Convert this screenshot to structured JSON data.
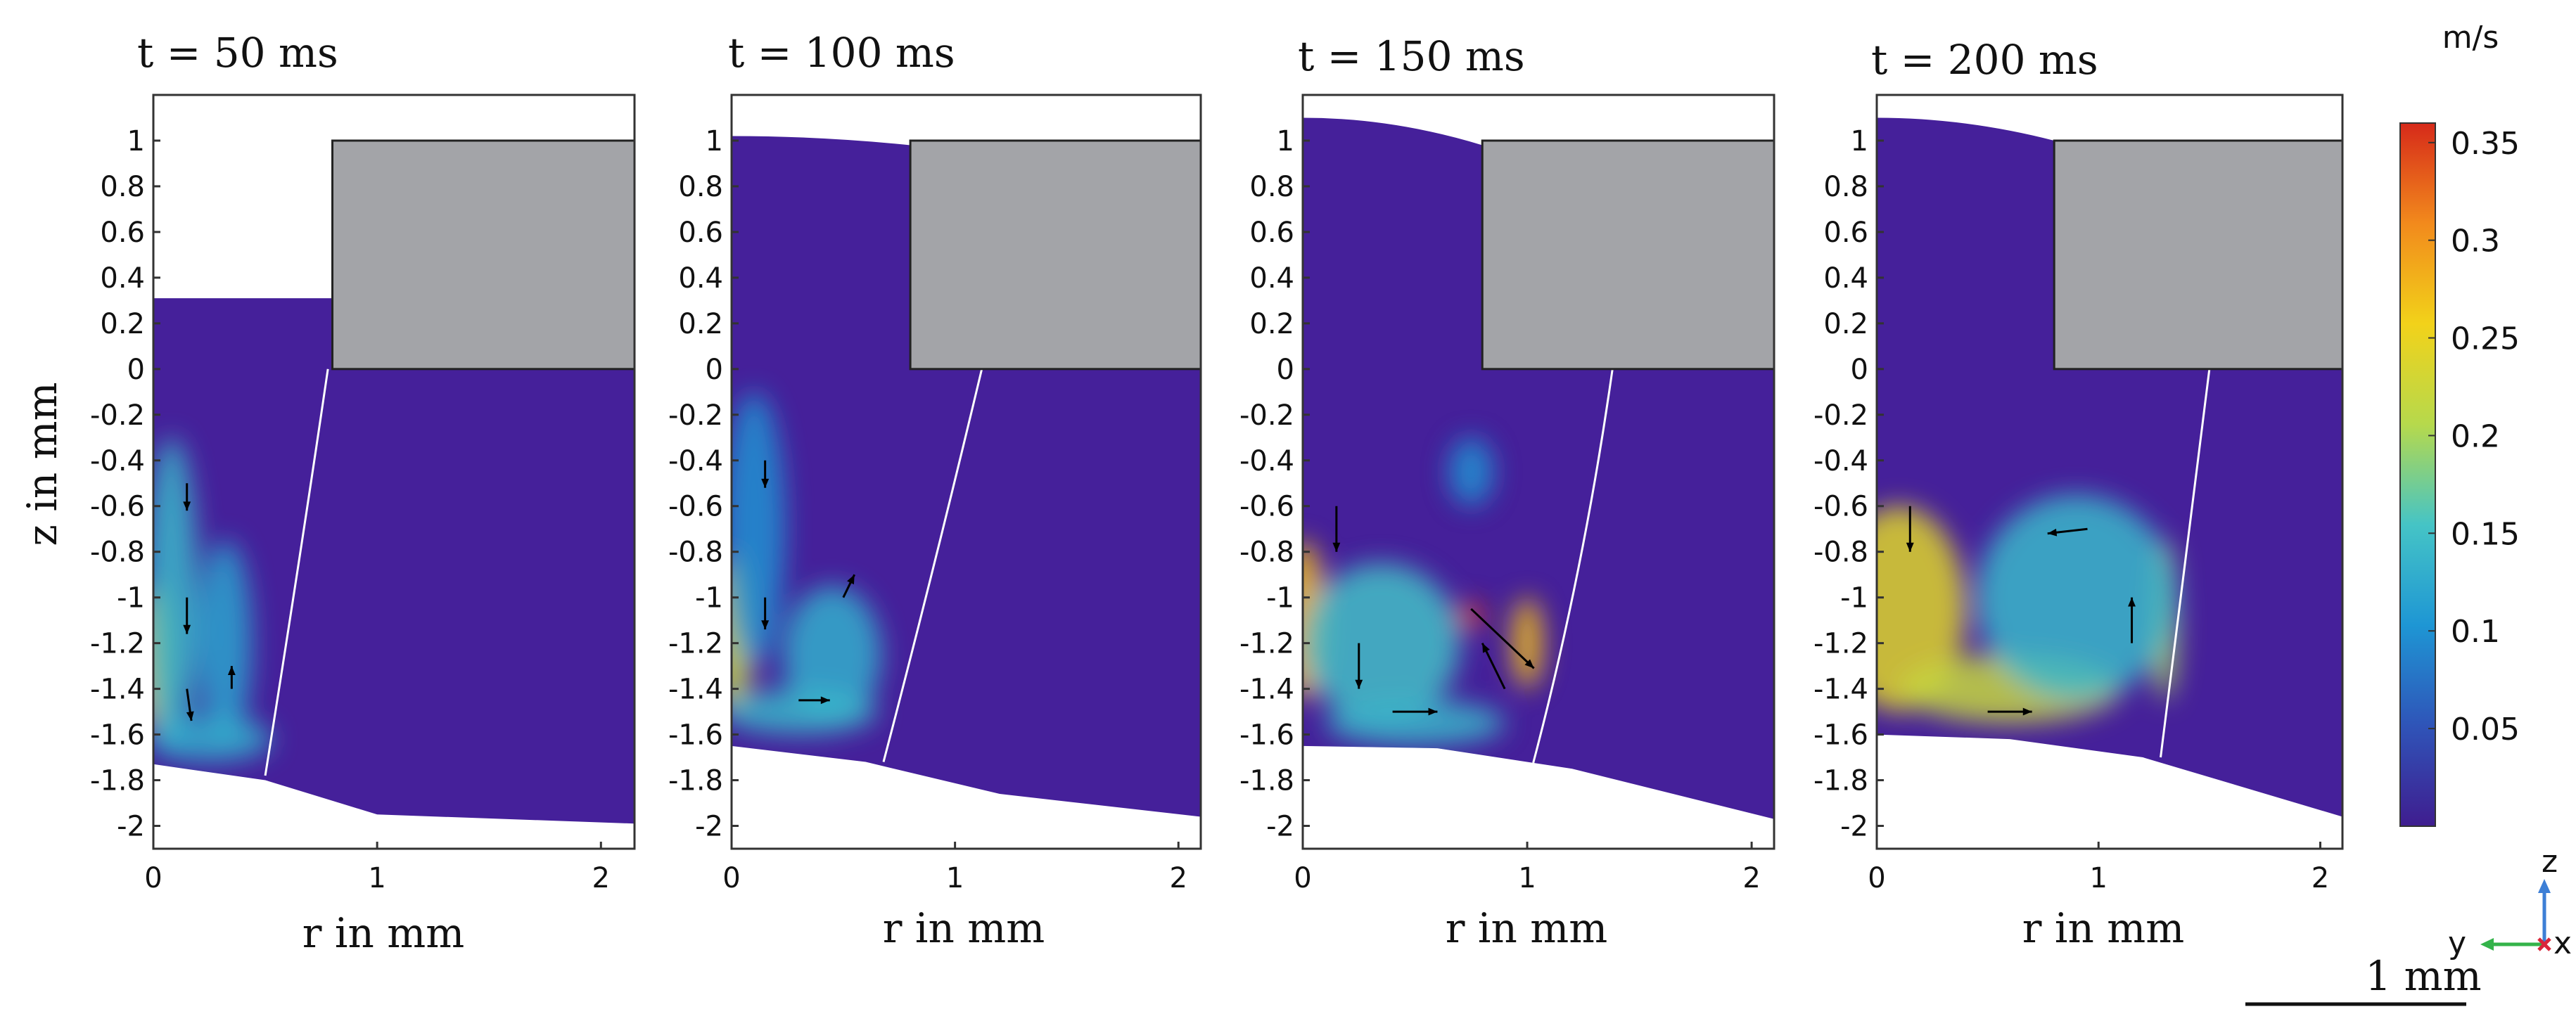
{
  "chart_data": {
    "type": "heatmap",
    "description_units": "velocity magnitude with velocity vectors (axisymmetric r–z cross section)",
    "panels": [
      {
        "title": "t = 50 ms",
        "xlabel": "r in mm",
        "ylabel": "z in mm",
        "xlim": [
          0,
          2.15
        ],
        "ylim": [
          -2.1,
          1.2
        ],
        "xticks": [
          "0",
          "1",
          "2"
        ],
        "yticks": [
          "1",
          "0.8",
          "0.6",
          "0.4",
          "0.2",
          "0",
          "-0.2",
          "-0.4",
          "-0.6",
          "-0.8",
          "-1",
          "-1.2",
          "-1.4",
          "-1.6",
          "-1.8",
          "-2"
        ],
        "fluid_top_z": 0.31,
        "bottom_surface": [
          [
            0,
            -1.73
          ],
          [
            0.5,
            -1.8
          ],
          [
            1.0,
            -1.95
          ],
          [
            2.15,
            -1.99
          ]
        ],
        "obstacle": {
          "r": [
            0.8,
            2.15
          ],
          "z": [
            0,
            1.0
          ]
        },
        "interface_line": [
          [
            0.5,
            -1.78
          ],
          [
            0.66,
            -0.8
          ],
          [
            0.78,
            0.0
          ]
        ],
        "hot_spots": [
          {
            "r": 0.0,
            "z": -1.25,
            "speed": 0.24,
            "rx": 0.09,
            "rz": 0.32
          },
          {
            "r": 0.08,
            "z": -1.0,
            "speed": 0.14,
            "rx": 0.12,
            "rz": 0.7
          },
          {
            "r": 0.32,
            "z": -1.2,
            "speed": 0.12,
            "rx": 0.12,
            "rz": 0.45
          },
          {
            "r": 0.25,
            "z": -1.62,
            "speed": 0.13,
            "rx": 0.28,
            "rz": 0.1
          }
        ],
        "vectors": [
          {
            "r": 0.15,
            "z": -0.5,
            "dr": 0.0,
            "dz": -0.12
          },
          {
            "r": 0.15,
            "z": -1.0,
            "dr": 0.0,
            "dz": -0.16
          },
          {
            "r": 0.15,
            "z": -1.4,
            "dr": 0.02,
            "dz": -0.14
          },
          {
            "r": 0.35,
            "z": -1.4,
            "dr": 0.0,
            "dz": 0.1
          }
        ]
      },
      {
        "title": "t = 100 ms",
        "xlabel": "r in mm",
        "ylabel": "",
        "xlim": [
          0,
          2.1
        ],
        "ylim": [
          -2.1,
          1.2
        ],
        "xticks": [
          "0",
          "1",
          "2"
        ],
        "yticks": [
          "1",
          "0.8",
          "0.6",
          "0.4",
          "0.2",
          "0",
          "-0.2",
          "-0.4",
          "-0.6",
          "-0.8",
          "-1",
          "-1.2",
          "-1.4",
          "-1.6",
          "-1.8",
          "-2"
        ],
        "fluid_top_z": 1.02,
        "fluid_top_profile": [
          [
            0,
            1.02
          ],
          [
            0.8,
            0.98
          ]
        ],
        "bottom_surface": [
          [
            0,
            -1.65
          ],
          [
            0.6,
            -1.72
          ],
          [
            1.2,
            -1.86
          ],
          [
            2.1,
            -1.96
          ]
        ],
        "obstacle": {
          "r": [
            0.8,
            2.1
          ],
          "z": [
            0,
            1.0
          ]
        },
        "interface_line": [
          [
            0.68,
            -1.72
          ],
          [
            0.9,
            -0.9
          ],
          [
            1.12,
            0.0
          ]
        ],
        "hot_spots": [
          {
            "r": 0.0,
            "z": -1.15,
            "speed": 0.22,
            "rx": 0.1,
            "rz": 0.35
          },
          {
            "r": 0.1,
            "z": -0.7,
            "speed": 0.1,
            "rx": 0.14,
            "rz": 0.6
          },
          {
            "r": 0.45,
            "z": -1.25,
            "speed": 0.13,
            "rx": 0.22,
            "rz": 0.3
          },
          {
            "r": 0.3,
            "z": -1.5,
            "speed": 0.14,
            "rx": 0.35,
            "rz": 0.1
          }
        ],
        "vectors": [
          {
            "r": 0.15,
            "z": -0.4,
            "dr": 0.0,
            "dz": -0.12
          },
          {
            "r": 0.15,
            "z": -1.0,
            "dr": 0.0,
            "dz": -0.14
          },
          {
            "r": 0.3,
            "z": -1.45,
            "dr": 0.14,
            "dz": 0.0
          },
          {
            "r": 0.5,
            "z": -1.0,
            "dr": 0.05,
            "dz": 0.1
          }
        ]
      },
      {
        "title": "t = 150 ms",
        "xlabel": "r in mm",
        "ylabel": "",
        "xlim": [
          0,
          2.1
        ],
        "ylim": [
          -2.1,
          1.2
        ],
        "xticks": [
          "0",
          "1",
          "2"
        ],
        "yticks": [
          "1",
          "0.8",
          "0.6",
          "0.4",
          "0.2",
          "0",
          "-0.2",
          "-0.4",
          "-0.6",
          "-0.8",
          "-1",
          "-1.2",
          "-1.4",
          "-1.6",
          "-1.8",
          "-2"
        ],
        "fluid_top_z": 1.1,
        "fluid_top_profile": [
          [
            0,
            1.1
          ],
          [
            0.8,
            0.98
          ]
        ],
        "bottom_surface": [
          [
            0,
            -1.65
          ],
          [
            0.6,
            -1.66
          ],
          [
            1.2,
            -1.75
          ],
          [
            2.1,
            -1.97
          ]
        ],
        "obstacle": {
          "r": [
            0.8,
            2.1
          ],
          "z": [
            0,
            1.0
          ]
        },
        "interface_line": [
          [
            1.02,
            -1.75
          ],
          [
            1.25,
            -0.9
          ],
          [
            1.38,
            0.0
          ]
        ],
        "hot_spots": [
          {
            "r": 0.0,
            "z": -1.1,
            "speed": 0.27,
            "rx": 0.1,
            "rz": 0.35
          },
          {
            "r": 0.35,
            "z": -1.2,
            "speed": 0.15,
            "rx": 0.35,
            "rz": 0.35
          },
          {
            "r": 0.75,
            "z": -1.08,
            "speed": 0.35,
            "rx": 0.06,
            "rz": 0.06
          },
          {
            "r": 1.0,
            "z": -1.2,
            "speed": 0.27,
            "rx": 0.07,
            "rz": 0.2
          },
          {
            "r": 0.5,
            "z": -1.55,
            "speed": 0.14,
            "rx": 0.4,
            "rz": 0.1
          },
          {
            "r": 0.75,
            "z": -0.45,
            "speed": 0.1,
            "rx": 0.1,
            "rz": 0.15
          }
        ],
        "vectors": [
          {
            "r": 0.15,
            "z": -0.6,
            "dr": 0.0,
            "dz": -0.2
          },
          {
            "r": 0.25,
            "z": -1.2,
            "dr": 0.0,
            "dz": -0.2
          },
          {
            "r": 0.4,
            "z": -1.5,
            "dr": 0.2,
            "dz": 0.0
          },
          {
            "r": 0.75,
            "z": -1.05,
            "dr": 0.28,
            "dz": -0.26
          },
          {
            "r": 0.9,
            "z": -1.4,
            "dr": -0.1,
            "dz": 0.2
          }
        ]
      },
      {
        "title": "t = 200 ms",
        "xlabel": "r in mm",
        "ylabel": "",
        "xlim": [
          0,
          2.1
        ],
        "ylim": [
          -2.1,
          1.2
        ],
        "xticks": [
          "0",
          "1",
          "2"
        ],
        "yticks": [
          "1",
          "0.8",
          "0.6",
          "0.4",
          "0.2",
          "0",
          "-0.2",
          "-0.4",
          "-0.6",
          "-0.8",
          "-1",
          "-1.2",
          "-1.4",
          "-1.6",
          "-1.8",
          "-2"
        ],
        "fluid_top_z": 1.1,
        "fluid_top_profile": [
          [
            0,
            1.1
          ],
          [
            0.8,
            1.0
          ]
        ],
        "bottom_surface": [
          [
            0,
            -1.6
          ],
          [
            0.6,
            -1.62
          ],
          [
            1.2,
            -1.7
          ],
          [
            2.1,
            -1.96
          ]
        ],
        "obstacle": {
          "r": [
            0.8,
            2.1
          ],
          "z": [
            0,
            1.0
          ]
        },
        "interface_line": [
          [
            1.28,
            -1.7
          ],
          [
            1.38,
            -0.9
          ],
          [
            1.5,
            0.0
          ]
        ],
        "hot_spots": [
          {
            "r": 0.1,
            "z": -1.05,
            "speed": 0.24,
            "rx": 0.3,
            "rz": 0.45
          },
          {
            "r": 0.6,
            "z": -1.4,
            "speed": 0.22,
            "rx": 0.5,
            "rz": 0.15
          },
          {
            "r": 1.3,
            "z": -1.1,
            "speed": 0.2,
            "rx": 0.06,
            "rz": 0.35
          },
          {
            "r": 0.9,
            "z": -1.0,
            "speed": 0.14,
            "rx": 0.45,
            "rz": 0.45
          }
        ],
        "vectors": [
          {
            "r": 0.15,
            "z": -0.6,
            "dr": 0.0,
            "dz": -0.2
          },
          {
            "r": 0.5,
            "z": -1.5,
            "dr": 0.2,
            "dz": 0.0
          },
          {
            "r": 1.15,
            "z": -1.2,
            "dr": 0.0,
            "dz": 0.2
          },
          {
            "r": 0.95,
            "z": -0.7,
            "dr": -0.18,
            "dz": -0.02
          }
        ]
      }
    ],
    "colorbar": {
      "unit": "m/s",
      "range": [
        0,
        0.36
      ],
      "ticks": [
        0.05,
        0.1,
        0.15,
        0.2,
        0.25,
        0.3,
        0.35
      ],
      "tick_labels": [
        "0.05",
        "0.1",
        "0.15",
        "0.2",
        "0.25",
        "0.3",
        "0.35"
      ],
      "colormap": "rainbow",
      "colors": [
        "#3f1d8f",
        "#2f54b8",
        "#1e96d4",
        "#45c4c6",
        "#b6d94c",
        "#f2d21a",
        "#f28a1c",
        "#d62a1a"
      ]
    },
    "scale_bar": {
      "label": "1 mm"
    },
    "triad": {
      "z": "z",
      "y": "y",
      "x": "x"
    }
  },
  "colors": {
    "obstacle": "#a3a4a8",
    "fluid_base": "#45209a",
    "interface": "#ffffff",
    "vector": "#000000"
  }
}
